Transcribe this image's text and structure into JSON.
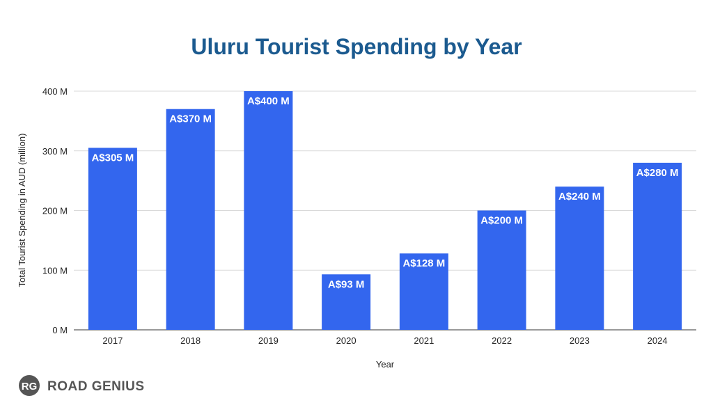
{
  "chart_data": {
    "type": "bar",
    "title": "Uluru Tourist Spending by Year",
    "xlabel": "Year",
    "ylabel": "Total Tourist Spending in AUD (million)",
    "categories": [
      "2017",
      "2018",
      "2019",
      "2020",
      "2021",
      "2022",
      "2023",
      "2024"
    ],
    "values": [
      305,
      370,
      400,
      93,
      128,
      200,
      240,
      280
    ],
    "data_labels": [
      "A$305 M",
      "A$370 M",
      "A$400 M",
      "A$93 M",
      "A$128 M",
      "A$200 M",
      "A$240 M",
      "A$280 M"
    ],
    "ylim": [
      0,
      400
    ],
    "yticks": [
      0,
      100,
      200,
      300,
      400
    ],
    "ytick_labels": [
      "0 M",
      "100 M",
      "200 M",
      "300 M",
      "400 M"
    ],
    "grid": true,
    "legend": "none"
  },
  "brand": {
    "badge": "RG",
    "name": "ROAD GENIUS"
  },
  "colors": {
    "bar": "#3366ee",
    "title": "#1b5a8f",
    "grid": "#d9d9d9",
    "brand": "#555555"
  }
}
